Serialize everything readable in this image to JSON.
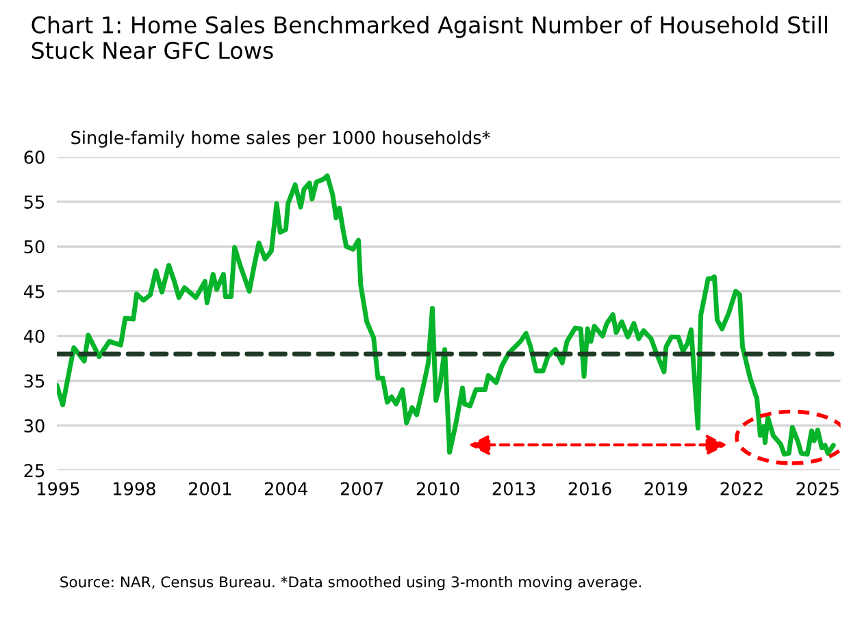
{
  "chart_data": {
    "type": "line",
    "title": "Chart 1: Home Sales Benchmarked Agaisnt Number of Household Still Stuck Near GFC Lows",
    "ylabel": "Single-family home sales per 1000 households*",
    "annotations": [
      "Source: NAR, Census Bureau. *Data smoothed using 3-month moving average."
    ],
    "series": [
      {
        "color": "#06b32a",
        "x": [
          1994.95,
          1995.18,
          1995.62,
          1996.03,
          1996.19,
          1996.62,
          1997.02,
          1997.47,
          1997.65,
          1997.97,
          1998.1,
          1998.37,
          1998.64,
          1998.86,
          1999.1,
          1999.37,
          1999.59,
          1999.77,
          1999.99,
          2000.44,
          2000.8,
          2000.88,
          2001.12,
          2001.26,
          2001.53,
          2001.61,
          2001.83,
          2001.97,
          2002.2,
          2002.55,
          2002.74,
          2002.93,
          2003.17,
          2003.42,
          2003.63,
          2003.77,
          2003.99,
          2004.08,
          2004.36,
          2004.58,
          2004.71,
          2004.93,
          2005.03,
          2005.2,
          2005.47,
          2005.63,
          2005.84,
          2005.98,
          2006.11,
          2006.25,
          2006.38,
          2006.65,
          2006.86,
          2006.95,
          2007.19,
          2007.46,
          2007.63,
          2007.82,
          2008.0,
          2008.17,
          2008.35,
          2008.6,
          2008.76,
          2008.98,
          2009.16,
          2009.43,
          2009.62,
          2009.78,
          2009.92,
          2010.08,
          2010.27,
          2010.46,
          2010.7,
          2010.97,
          2011.05,
          2011.27,
          2011.5,
          2011.86,
          2011.99,
          2012.3,
          2012.53,
          2012.8,
          2013.26,
          2013.48,
          2013.66,
          2013.88,
          2014.15,
          2014.34,
          2014.64,
          2014.91,
          2015.1,
          2015.42,
          2015.64,
          2015.77,
          2015.91,
          2016.04,
          2016.18,
          2016.5,
          2016.67,
          2016.91,
          2017.04,
          2017.26,
          2017.5,
          2017.74,
          2017.93,
          2018.12,
          2018.42,
          2018.6,
          2018.93,
          2019.01,
          2019.22,
          2019.49,
          2019.68,
          2019.86,
          2020.0,
          2020.27,
          2020.38,
          2020.67,
          2020.78,
          2020.92,
          2021.03,
          2021.22,
          2021.49,
          2021.76,
          2021.92,
          2022.03,
          2022.33,
          2022.6,
          2022.73,
          2022.87,
          2022.92,
          2023.03,
          2023.24,
          2023.54,
          2023.68,
          2023.86,
          2024.0,
          2024.22,
          2024.35,
          2024.59,
          2024.76,
          2024.86,
          2025.0,
          2025.16,
          2025.29,
          2025.4,
          2025.62
        ],
        "values": [
          34.5,
          32.3,
          38.7,
          37.2,
          40.1,
          37.7,
          39.4,
          39.0,
          42.0,
          41.9,
          44.7,
          44.0,
          44.6,
          47.3,
          44.9,
          47.9,
          46.1,
          44.3,
          45.4,
          44.3,
          46.1,
          43.7,
          46.9,
          45.2,
          46.9,
          44.4,
          44.4,
          49.9,
          47.8,
          45.0,
          47.8,
          50.4,
          48.6,
          49.5,
          54.8,
          51.6,
          51.9,
          54.8,
          56.9,
          54.4,
          56.4,
          57.1,
          55.3,
          57.2,
          57.5,
          57.9,
          55.8,
          53.2,
          54.3,
          51.9,
          50.0,
          49.7,
          50.7,
          45.7,
          41.6,
          39.8,
          35.3,
          35.3,
          32.6,
          33.2,
          32.4,
          34.0,
          30.3,
          32.0,
          31.2,
          34.5,
          37.0,
          43.1,
          32.8,
          34.5,
          38.5,
          27.0,
          30.1,
          34.2,
          32.4,
          32.2,
          34.0,
          34.0,
          35.6,
          34.8,
          36.7,
          38.1,
          39.4,
          40.3,
          38.8,
          36.1,
          36.1,
          37.7,
          38.5,
          37.0,
          39.4,
          40.9,
          40.8,
          35.5,
          40.8,
          39.4,
          41.1,
          40.0,
          41.4,
          42.4,
          40.4,
          41.6,
          39.9,
          41.4,
          39.7,
          40.6,
          39.7,
          38.3,
          36.0,
          38.8,
          39.9,
          39.9,
          38.3,
          39.2,
          40.7,
          29.7,
          42.3,
          46.4,
          46.4,
          46.6,
          41.8,
          40.8,
          42.6,
          45.0,
          44.6,
          38.8,
          35.3,
          33.0,
          28.9,
          29.9,
          28.1,
          30.9,
          28.9,
          27.9,
          26.8,
          26.9,
          29.8,
          28.2,
          26.9,
          26.8,
          29.4,
          28.3,
          29.5,
          27.5,
          27.8,
          26.9,
          27.8
        ]
      }
    ],
    "ref_lines": [
      {
        "axis": "y",
        "value": 38,
        "color": "#1d3b25",
        "line_style": "dashed"
      }
    ],
    "xlim": [
      1994.95,
      2025.9
    ],
    "xticks": [
      1995,
      1998,
      2001,
      2004,
      2007,
      2010,
      2013,
      2016,
      2019,
      2022,
      2025
    ],
    "ylim": [
      25,
      60
    ],
    "yticks": [
      25,
      30,
      35,
      40,
      45,
      50,
      55,
      60
    ],
    "grid": "y",
    "legend": false,
    "marker": "none",
    "line_style": "solid"
  }
}
